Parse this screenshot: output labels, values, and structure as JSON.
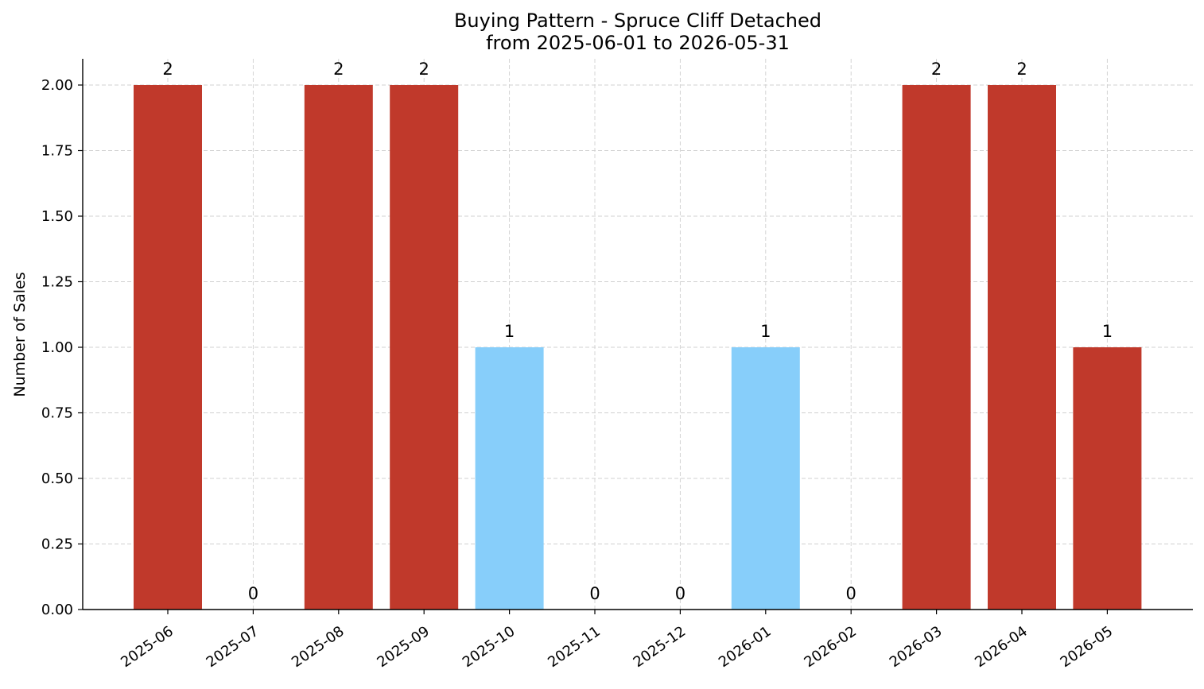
{
  "chart_data": {
    "type": "bar",
    "title": "Buying Pattern - Spruce Cliff Detached",
    "subtitle": "from 2025-06-01 to 2026-05-31",
    "xlabel": "",
    "ylabel": "Number of Sales",
    "categories": [
      "2025-06",
      "2025-07",
      "2025-08",
      "2025-09",
      "2025-10",
      "2025-11",
      "2025-12",
      "2026-01",
      "2026-02",
      "2026-03",
      "2026-04",
      "2026-05"
    ],
    "values": [
      2,
      0,
      2,
      2,
      1,
      0,
      0,
      1,
      0,
      2,
      2,
      1
    ],
    "data_labels": [
      "2",
      "0",
      "2",
      "2",
      "1",
      "0",
      "0",
      "1",
      "0",
      "2",
      "2",
      "1"
    ],
    "bar_colors": [
      "#c0392b",
      "#c0392b",
      "#c0392b",
      "#c0392b",
      "#87cefa",
      "#c0392b",
      "#c0392b",
      "#87cefa",
      "#c0392b",
      "#c0392b",
      "#c0392b",
      "#c0392b"
    ],
    "ylim": [
      0,
      2.1
    ],
    "yticks": [
      0.0,
      0.25,
      0.5,
      0.75,
      1.0,
      1.25,
      1.5,
      1.75,
      2.0
    ],
    "ytick_labels": [
      "0.00",
      "0.25",
      "0.50",
      "0.75",
      "1.00",
      "1.25",
      "1.50",
      "1.75",
      "2.00"
    ],
    "grid": true,
    "legend": null
  }
}
